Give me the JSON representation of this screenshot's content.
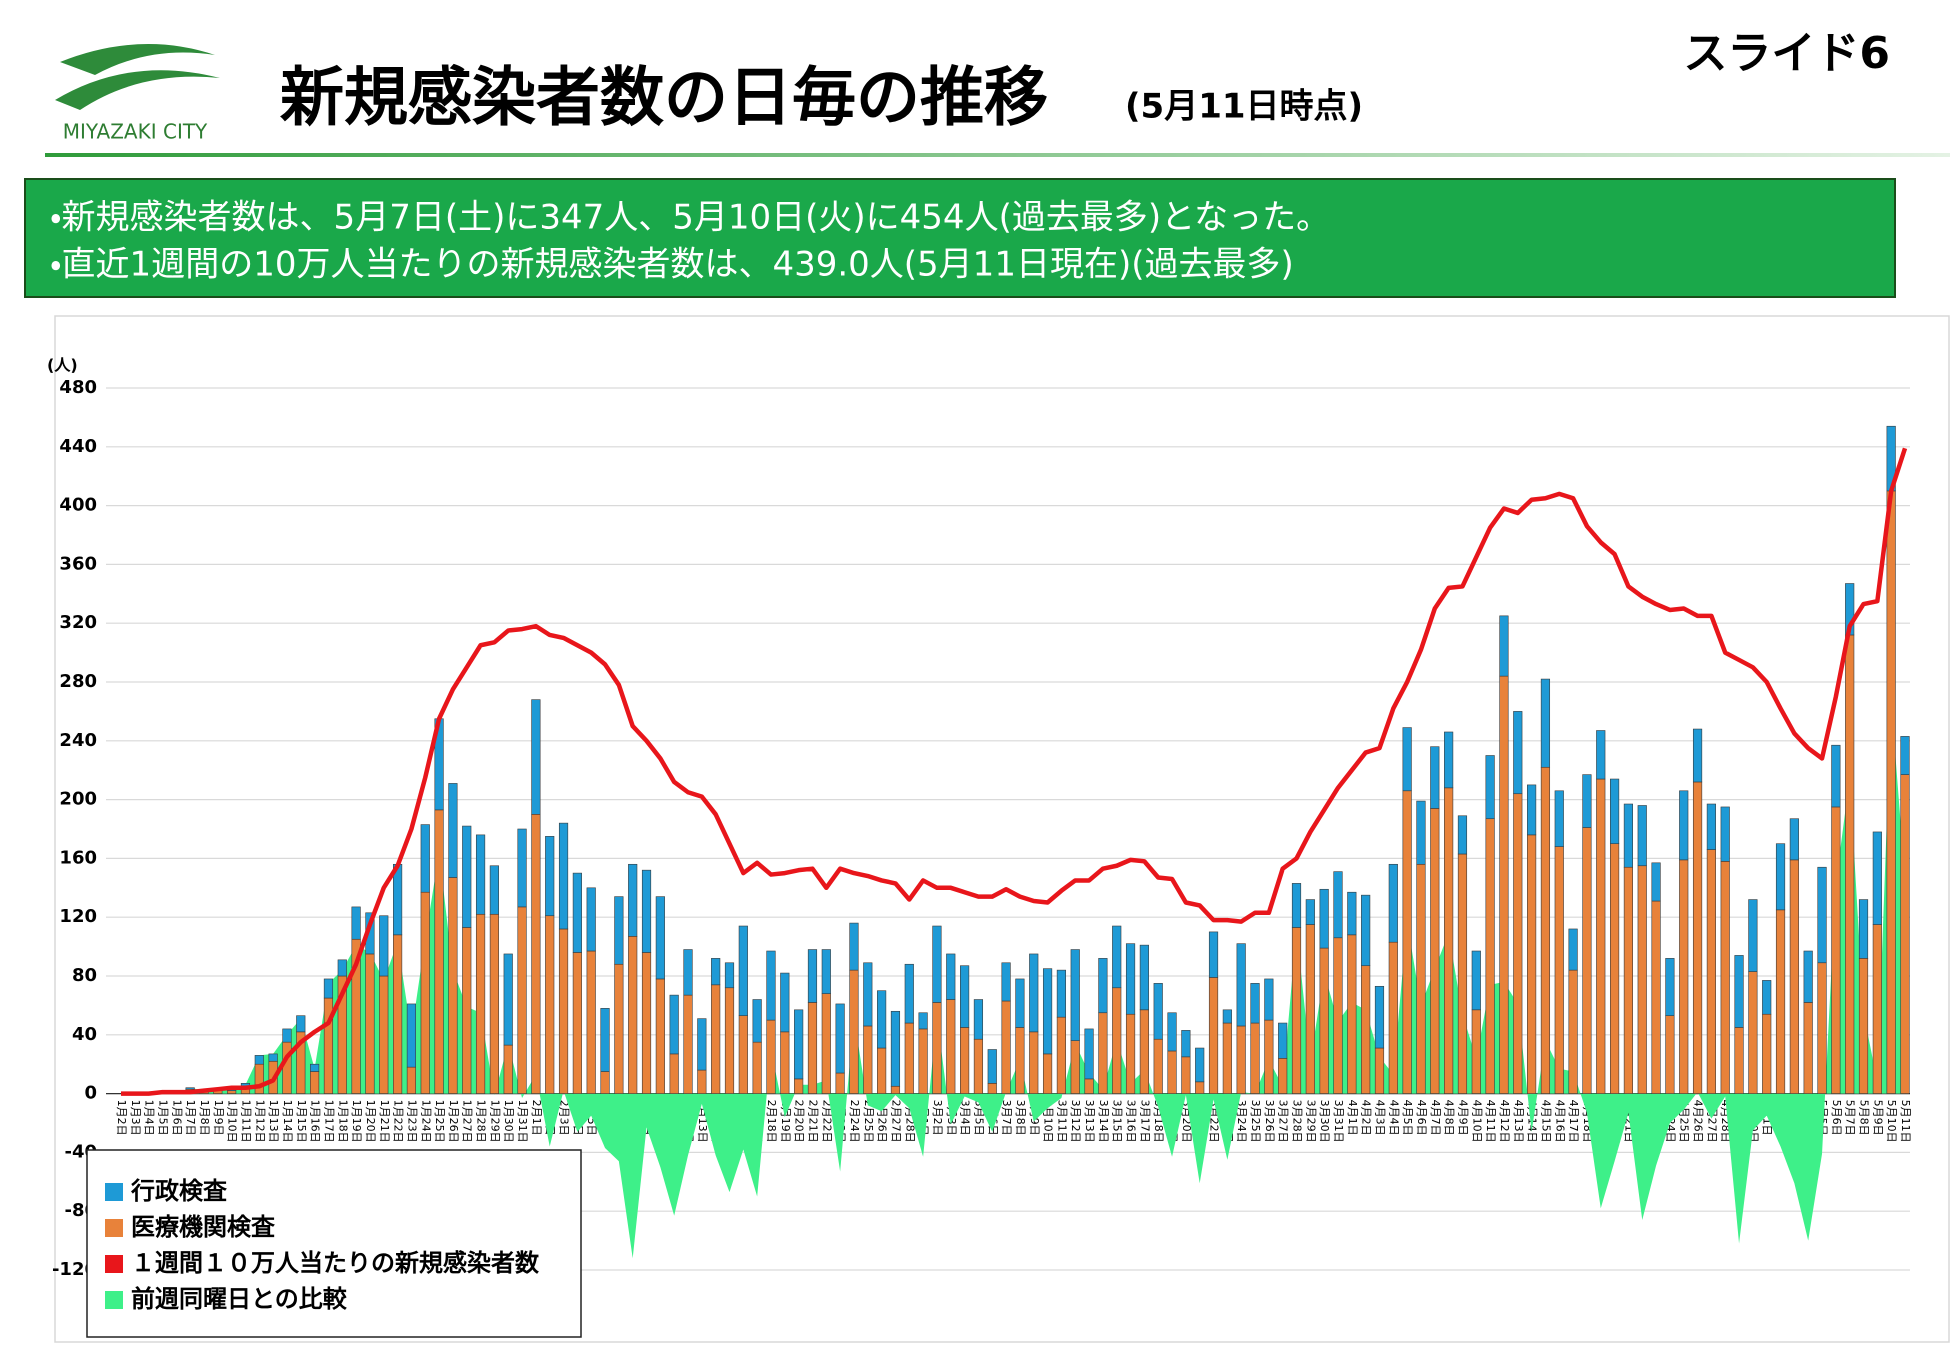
{
  "header": {
    "logo_text": "MIYAZAKI CITY",
    "title": "新規感染者数の日毎の推移",
    "subtitle": "(5月11日時点)",
    "slide_label": "スライド6"
  },
  "notice": {
    "lines": [
      "・新規感染者数は、5月7日(土)に347人、5月10日(火)に454人(過去最多)となった。",
      "・直近1週間の10万人当たりの新規感染者数は、439.0人(5月11日現在)(過去最多)"
    ]
  },
  "chart_data": {
    "type": "bar",
    "y_unit": "(人)",
    "categories": [
      "1月2日",
      "1月3日",
      "1月4日",
      "1月5日",
      "1月6日",
      "1月7日",
      "1月8日",
      "1月9日",
      "1月10日",
      "1月11日",
      "1月12日",
      "1月13日",
      "1月14日",
      "1月15日",
      "1月16日",
      "1月17日",
      "1月18日",
      "1月19日",
      "1月20日",
      "1月21日",
      "1月22日",
      "1月23日",
      "1月24日",
      "1月25日",
      "1月26日",
      "1月27日",
      "1月28日",
      "1月29日",
      "1月30日",
      "1月31日",
      "2月1日",
      "2月2日",
      "2月3日",
      "2月4日",
      "2月5日",
      "2月6日",
      "2月7日",
      "2月8日",
      "2月9日",
      "2月10日",
      "2月11日",
      "2月12日",
      "2月13日",
      "2月14日",
      "2月15日",
      "2月16日",
      "2月17日",
      "2月18日",
      "2月19日",
      "2月20日",
      "2月21日",
      "2月22日",
      "2月23日",
      "2月24日",
      "2月25日",
      "2月26日",
      "2月27日",
      "2月28日",
      "3月1日",
      "3月2日",
      "3月3日",
      "3月4日",
      "3月5日",
      "3月6日",
      "3月7日",
      "3月8日",
      "3月9日",
      "3月10日",
      "3月11日",
      "3月12日",
      "3月13日",
      "3月14日",
      "3月15日",
      "3月16日",
      "3月17日",
      "3月18日",
      "3月19日",
      "3月20日",
      "3月21日",
      "3月22日",
      "3月23日",
      "3月24日",
      "3月25日",
      "3月26日",
      "3月27日",
      "3月28日",
      "3月29日",
      "3月30日",
      "3月31日",
      "4月1日",
      "4月2日",
      "4月3日",
      "4月4日",
      "4月5日",
      "4月6日",
      "4月7日",
      "4月8日",
      "4月9日",
      "4月10日",
      "4月11日",
      "4月12日",
      "4月13日",
      "4月14日",
      "4月15日",
      "4月16日",
      "4月17日",
      "4月18日",
      "4月19日",
      "4月20日",
      "4月21日",
      "4月22日",
      "4月23日",
      "4月24日",
      "4月25日",
      "4月26日",
      "4月27日",
      "4月28日",
      "4月29日",
      "4月30日",
      "5月1日",
      "5月2日",
      "5月3日",
      "5月4日",
      "5月5日",
      "5月6日",
      "5月7日",
      "5月8日",
      "5月9日",
      "5月10日",
      "5月11日"
    ],
    "series": [
      {
        "name": "行政検査",
        "type": "bar",
        "color": "#1e9ad6",
        "values": [
          0,
          0,
          0,
          0,
          0,
          1,
          0,
          1,
          1,
          2,
          6,
          5,
          9,
          11,
          5,
          13,
          11,
          22,
          28,
          41,
          48,
          43,
          46,
          62,
          64,
          69,
          54,
          33,
          62,
          53,
          78,
          54,
          72,
          54,
          43,
          43,
          46,
          49,
          56,
          56,
          40,
          31,
          35,
          18,
          17,
          61,
          29,
          47,
          40,
          47,
          36,
          30,
          47,
          32,
          43,
          39,
          51,
          40,
          11,
          52,
          31,
          42,
          27,
          23,
          26,
          33,
          53,
          58,
          32,
          62,
          34,
          37,
          42,
          48,
          44,
          38,
          26,
          18,
          23,
          31,
          9,
          56,
          27,
          28,
          24,
          30,
          17,
          40,
          45,
          29,
          48,
          42,
          53,
          43,
          43,
          42,
          38,
          26,
          40,
          43,
          41,
          56,
          34,
          60,
          38,
          28,
          36,
          33,
          44,
          43,
          41,
          26,
          39,
          47,
          36,
          31,
          37,
          49,
          49,
          23,
          45,
          28,
          35,
          65,
          42,
          35,
          40,
          63,
          44,
          26
        ]
      },
      {
        "name": "医療機関検査",
        "type": "bar",
        "color": "#e8823a",
        "values": [
          0,
          0,
          1,
          0,
          0,
          3,
          2,
          2,
          2,
          5,
          20,
          22,
          35,
          42,
          15,
          65,
          80,
          105,
          95,
          80,
          108,
          18,
          137,
          193,
          147,
          113,
          122,
          122,
          33,
          127,
          190,
          121,
          112,
          96,
          97,
          15,
          88,
          107,
          96,
          78,
          27,
          67,
          16,
          74,
          72,
          53,
          35,
          50,
          42,
          10,
          62,
          68,
          14,
          84,
          46,
          31,
          5,
          48,
          44,
          62,
          64,
          45,
          37,
          7,
          63,
          45,
          42,
          27,
          52,
          36,
          10,
          55,
          72,
          54,
          57,
          37,
          29,
          25,
          8,
          79,
          48,
          46,
          48,
          50,
          24,
          113,
          115,
          99,
          106,
          108,
          87,
          31,
          103,
          206,
          156,
          194,
          208,
          163,
          57,
          187,
          284,
          204,
          176,
          222,
          168,
          84,
          181,
          214,
          170,
          154,
          155,
          131,
          53,
          159,
          212,
          166,
          158,
          45,
          83,
          54,
          125,
          159,
          62,
          89,
          195,
          312,
          92,
          115,
          410,
          217
        ]
      },
      {
        "name": "１週間１０万人当たりの新規感染者数",
        "type": "line",
        "color": "#e8161b",
        "values": [
          0,
          0,
          0,
          1,
          1,
          1,
          2,
          3,
          4,
          4,
          5,
          9,
          25,
          35,
          42,
          48,
          68,
          88,
          115,
          140,
          155,
          180,
          215,
          255,
          275,
          290,
          305,
          307,
          315,
          316,
          318,
          312,
          310,
          305,
          300,
          292,
          278,
          250,
          240,
          228,
          212,
          205,
          202,
          190,
          170,
          150,
          157,
          149,
          150,
          152,
          153,
          140,
          153,
          150,
          148,
          145,
          143,
          132,
          145,
          140,
          140,
          137,
          134,
          134,
          139,
          134,
          131,
          130,
          138,
          145,
          145,
          153,
          155,
          159,
          158,
          147,
          146,
          130,
          128,
          118,
          118,
          117,
          123,
          123,
          153,
          160,
          178,
          193,
          208,
          220,
          232,
          235,
          262,
          280,
          302,
          330,
          344,
          345,
          365,
          385,
          398,
          395,
          404,
          405,
          408,
          405,
          386,
          375,
          367,
          345,
          338,
          333,
          329,
          330,
          325,
          325,
          300,
          295,
          290,
          280,
          262,
          245,
          235,
          228,
          270,
          318,
          333,
          335,
          410,
          439
        ]
      },
      {
        "name": "前週同曜日との比較",
        "type": "area",
        "color": "#3ef089",
        "values": [
          0,
          0,
          1,
          0,
          0,
          4,
          2,
          3,
          3,
          6,
          26,
          27,
          40,
          51,
          17,
          75,
          84,
          101,
          96,
          77,
          103,
          41,
          105,
          164,
          84,
          59,
          55,
          -1,
          34,
          -3,
          13,
          -36,
          2,
          -26,
          -15,
          -37,
          -46,
          -112,
          -23,
          -50,
          -83,
          -42,
          -7,
          -42,
          -67,
          -38,
          -70,
          30,
          -16,
          6,
          6,
          9,
          -53,
          52,
          -8,
          -12,
          -1,
          -10,
          -43,
          53,
          -21,
          -2,
          -6,
          -26,
          1,
          23,
          -19,
          -10,
          -3,
          34,
          14,
          3,
          36,
          7,
          16,
          -9,
          -43,
          -1,
          -61,
          -4,
          -45,
          1,
          0,
          23,
          5,
          112,
          22,
          82,
          49,
          62,
          57,
          25,
          13,
          117,
          60,
          85,
          109,
          54,
          24,
          74,
          76,
          61,
          -26,
          36,
          17,
          15,
          -13,
          -78,
          -46,
          -13,
          -86,
          -49,
          -20,
          -11,
          1,
          -17,
          -2,
          -102,
          -25,
          -15,
          -36,
          -61,
          -100,
          -41,
          143,
          215,
          55,
          8,
          267,
          146
        ]
      }
    ],
    "ylim": [
      -120,
      480
    ],
    "yticks": [
      -120,
      -80,
      -40,
      0,
      40,
      80,
      120,
      160,
      200,
      240,
      280,
      320,
      360,
      400,
      440,
      480
    ],
    "grid": true,
    "legend": "lower left"
  }
}
